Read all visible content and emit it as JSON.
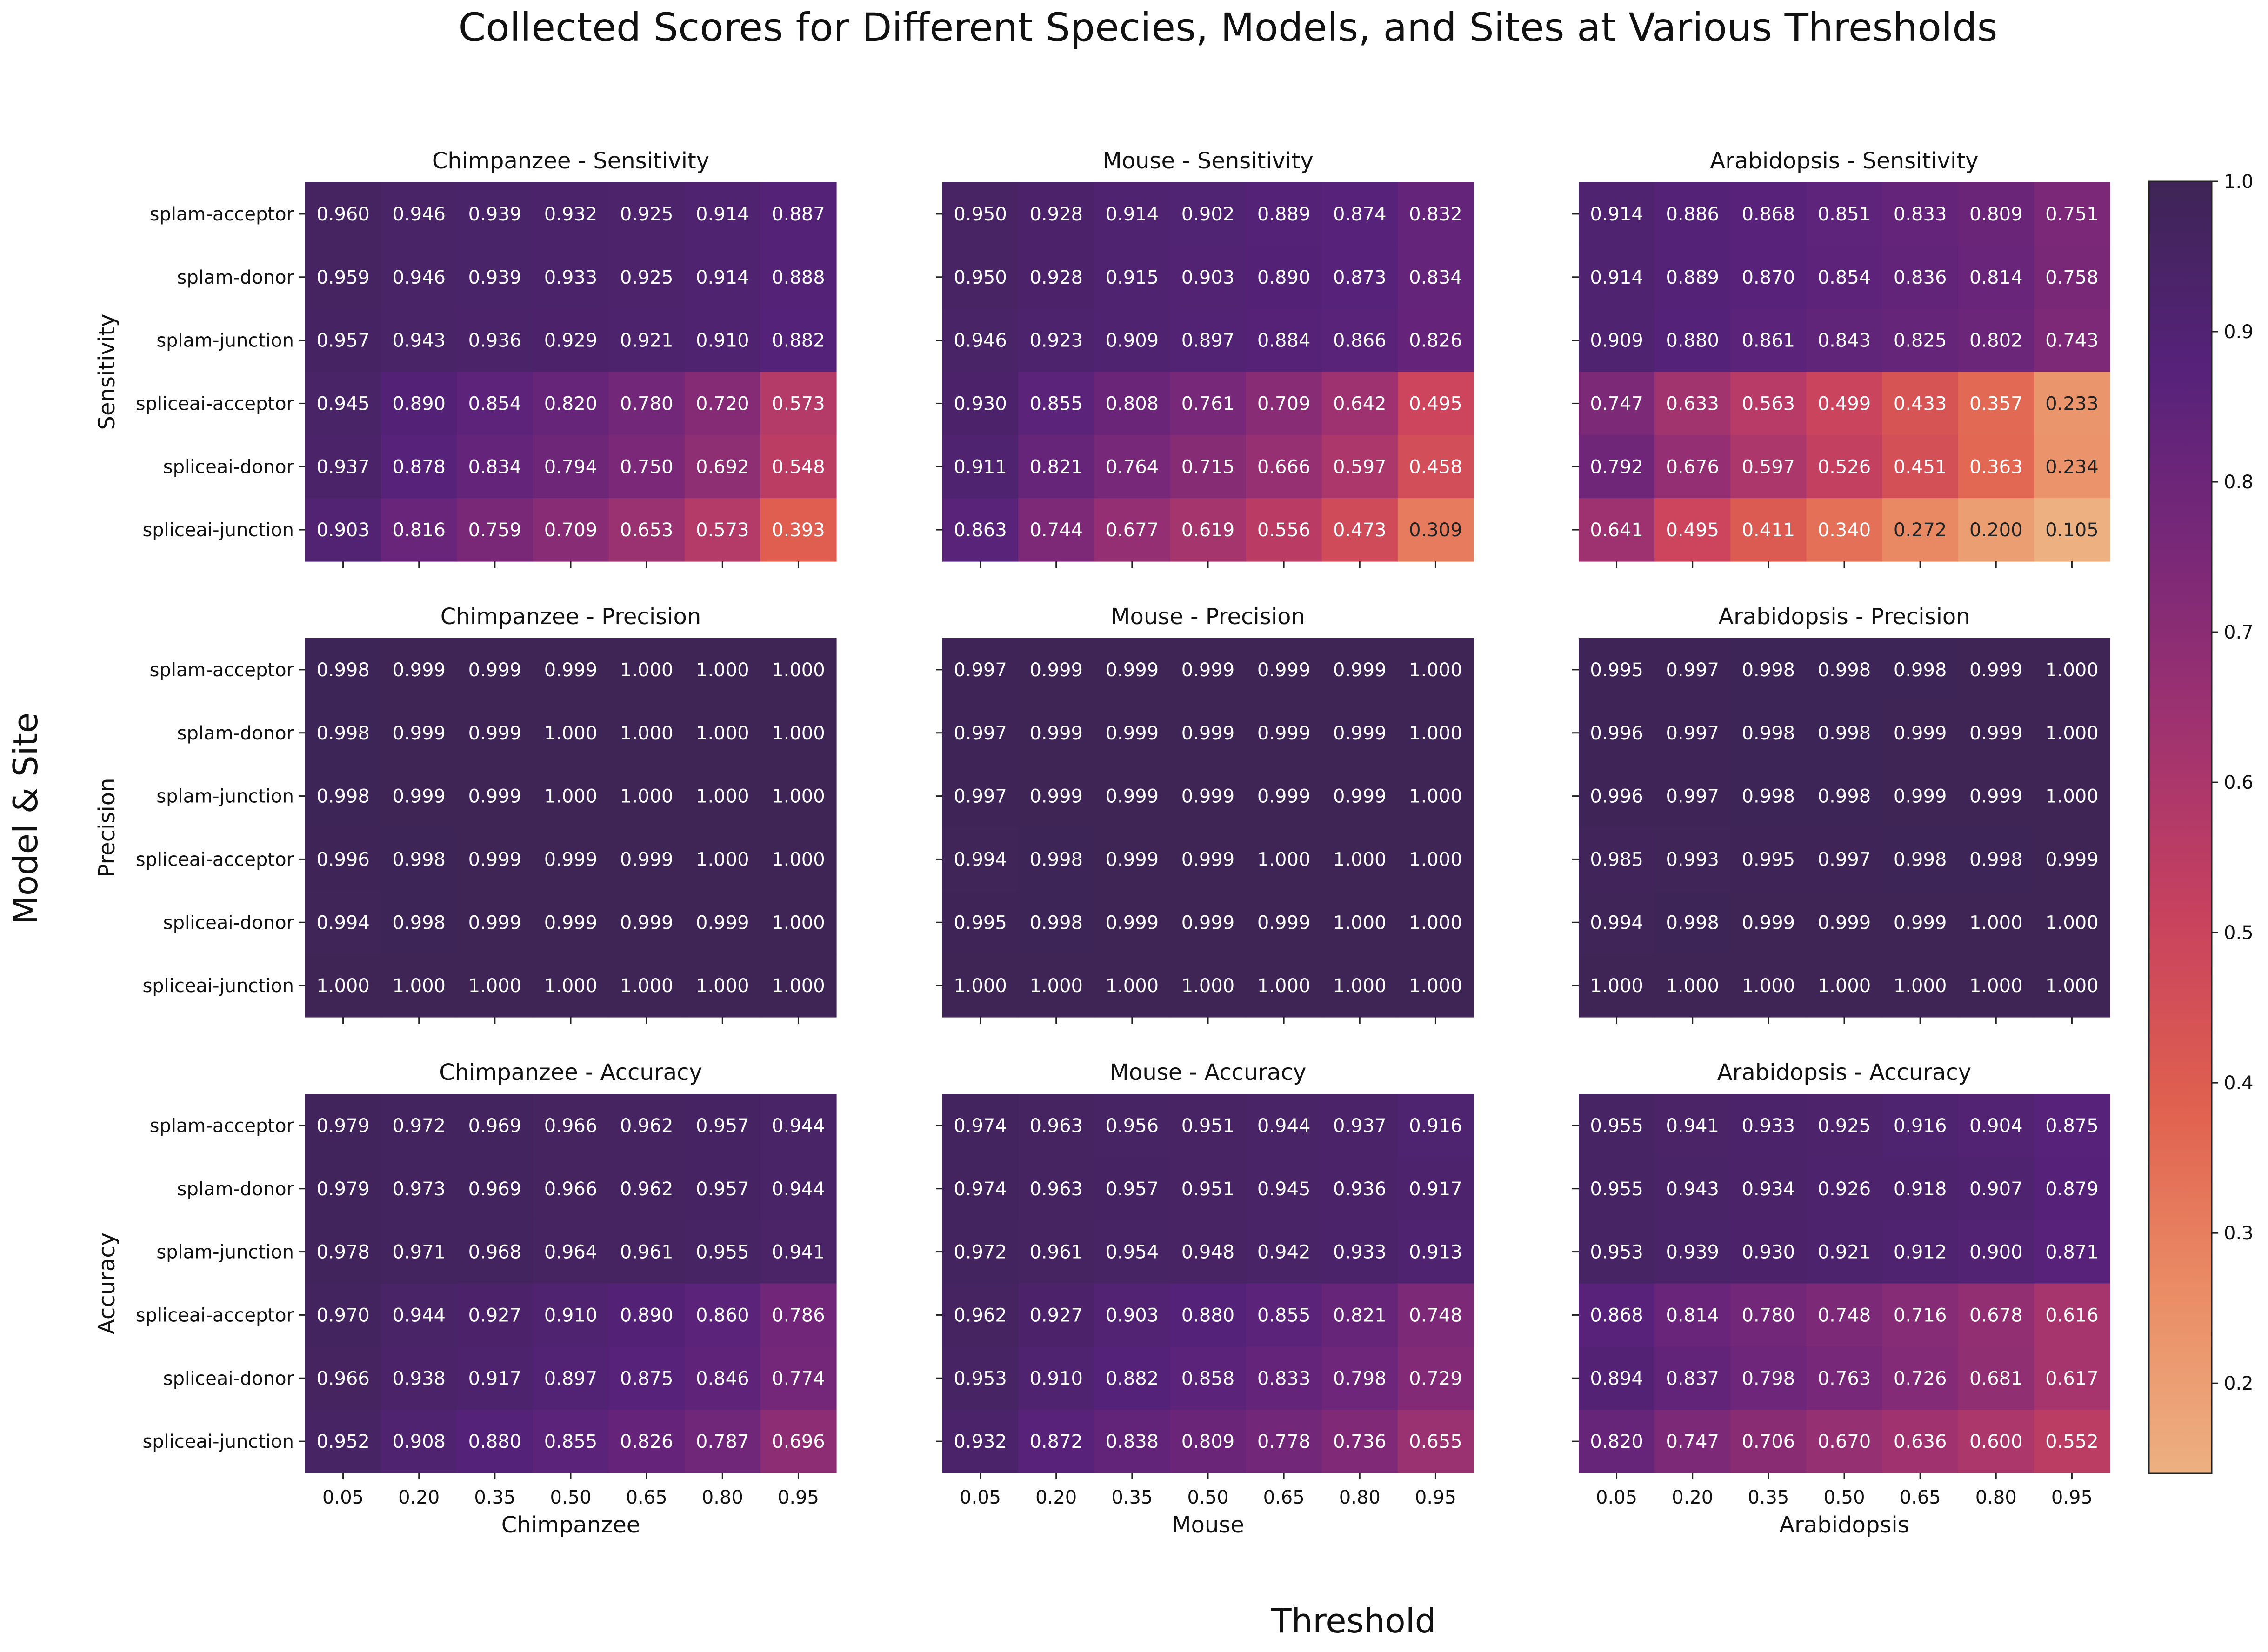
{
  "title": "Collected Scores for Different Species, Models, and Sites at Various Thresholds",
  "supxlabel": "Threshold",
  "supylabel": "Model & Site",
  "colorbar": {
    "min": 0.14,
    "max": 1.0,
    "ticks": [
      "0.2",
      "0.3",
      "0.4",
      "0.5",
      "0.6",
      "0.7",
      "0.8",
      "0.9",
      "1.0"
    ]
  },
  "chart_data": {
    "type": "heatmap",
    "colormap": "flare",
    "color_stops": [
      "#edb081",
      "#ea8c65",
      "#e0604f",
      "#c9425e",
      "#a1336f",
      "#7a2878",
      "#56227a",
      "#3e2556"
    ],
    "thresholds": [
      "0.05",
      "0.20",
      "0.35",
      "0.50",
      "0.65",
      "0.80",
      "0.95"
    ],
    "rows": [
      "splam-acceptor",
      "splam-donor",
      "splam-junction",
      "spliceai-acceptor",
      "spliceai-donor",
      "spliceai-junction"
    ],
    "species": [
      "Chimpanzee",
      "Mouse",
      "Arabidopsis"
    ],
    "metrics": [
      "Sensitivity",
      "Precision",
      "Accuracy"
    ],
    "panels": [
      {
        "title": "Chimpanzee - Sensitivity",
        "values": [
          [
            0.96,
            0.946,
            0.939,
            0.932,
            0.925,
            0.914,
            0.887
          ],
          [
            0.959,
            0.946,
            0.939,
            0.933,
            0.925,
            0.914,
            0.888
          ],
          [
            0.957,
            0.943,
            0.936,
            0.929,
            0.921,
            0.91,
            0.882
          ],
          [
            0.945,
            0.89,
            0.854,
            0.82,
            0.78,
            0.72,
            0.573
          ],
          [
            0.937,
            0.878,
            0.834,
            0.794,
            0.75,
            0.692,
            0.548
          ],
          [
            0.903,
            0.816,
            0.759,
            0.709,
            0.653,
            0.573,
            0.393
          ]
        ]
      },
      {
        "title": "Mouse - Sensitivity",
        "values": [
          [
            0.95,
            0.928,
            0.914,
            0.902,
            0.889,
            0.874,
            0.832
          ],
          [
            0.95,
            0.928,
            0.915,
            0.903,
            0.89,
            0.873,
            0.834
          ],
          [
            0.946,
            0.923,
            0.909,
            0.897,
            0.884,
            0.866,
            0.826
          ],
          [
            0.93,
            0.855,
            0.808,
            0.761,
            0.709,
            0.642,
            0.495
          ],
          [
            0.911,
            0.821,
            0.764,
            0.715,
            0.666,
            0.597,
            0.458
          ],
          [
            0.863,
            0.744,
            0.677,
            0.619,
            0.556,
            0.473,
            0.309
          ]
        ]
      },
      {
        "title": "Arabidopsis - Sensitivity",
        "values": [
          [
            0.914,
            0.886,
            0.868,
            0.851,
            0.833,
            0.809,
            0.751
          ],
          [
            0.914,
            0.889,
            0.87,
            0.854,
            0.836,
            0.814,
            0.758
          ],
          [
            0.909,
            0.88,
            0.861,
            0.843,
            0.825,
            0.802,
            0.743
          ],
          [
            0.747,
            0.633,
            0.563,
            0.499,
            0.433,
            0.357,
            0.233
          ],
          [
            0.792,
            0.676,
            0.597,
            0.526,
            0.451,
            0.363,
            0.234
          ],
          [
            0.641,
            0.495,
            0.411,
            0.34,
            0.272,
            0.2,
            0.105
          ]
        ]
      },
      {
        "title": "Chimpanzee - Precision",
        "values": [
          [
            0.998,
            0.999,
            0.999,
            0.999,
            1.0,
            1.0,
            1.0
          ],
          [
            0.998,
            0.999,
            0.999,
            1.0,
            1.0,
            1.0,
            1.0
          ],
          [
            0.998,
            0.999,
            0.999,
            1.0,
            1.0,
            1.0,
            1.0
          ],
          [
            0.996,
            0.998,
            0.999,
            0.999,
            0.999,
            1.0,
            1.0
          ],
          [
            0.994,
            0.998,
            0.999,
            0.999,
            0.999,
            0.999,
            1.0
          ],
          [
            1.0,
            1.0,
            1.0,
            1.0,
            1.0,
            1.0,
            1.0
          ]
        ]
      },
      {
        "title": "Mouse - Precision",
        "values": [
          [
            0.997,
            0.999,
            0.999,
            0.999,
            0.999,
            0.999,
            1.0
          ],
          [
            0.997,
            0.999,
            0.999,
            0.999,
            0.999,
            0.999,
            1.0
          ],
          [
            0.997,
            0.999,
            0.999,
            0.999,
            0.999,
            0.999,
            1.0
          ],
          [
            0.994,
            0.998,
            0.999,
            0.999,
            1.0,
            1.0,
            1.0
          ],
          [
            0.995,
            0.998,
            0.999,
            0.999,
            0.999,
            1.0,
            1.0
          ],
          [
            1.0,
            1.0,
            1.0,
            1.0,
            1.0,
            1.0,
            1.0
          ]
        ]
      },
      {
        "title": "Arabidopsis - Precision",
        "values": [
          [
            0.995,
            0.997,
            0.998,
            0.998,
            0.998,
            0.999,
            1.0
          ],
          [
            0.996,
            0.997,
            0.998,
            0.998,
            0.999,
            0.999,
            1.0
          ],
          [
            0.996,
            0.997,
            0.998,
            0.998,
            0.999,
            0.999,
            1.0
          ],
          [
            0.985,
            0.993,
            0.995,
            0.997,
            0.998,
            0.998,
            0.999
          ],
          [
            0.994,
            0.998,
            0.999,
            0.999,
            0.999,
            1.0,
            1.0
          ],
          [
            1.0,
            1.0,
            1.0,
            1.0,
            1.0,
            1.0,
            1.0
          ]
        ]
      },
      {
        "title": "Chimpanzee - Accuracy",
        "values": [
          [
            0.979,
            0.972,
            0.969,
            0.966,
            0.962,
            0.957,
            0.944
          ],
          [
            0.979,
            0.973,
            0.969,
            0.966,
            0.962,
            0.957,
            0.944
          ],
          [
            0.978,
            0.971,
            0.968,
            0.964,
            0.961,
            0.955,
            0.941
          ],
          [
            0.97,
            0.944,
            0.927,
            0.91,
            0.89,
            0.86,
            0.786
          ],
          [
            0.966,
            0.938,
            0.917,
            0.897,
            0.875,
            0.846,
            0.774
          ],
          [
            0.952,
            0.908,
            0.88,
            0.855,
            0.826,
            0.787,
            0.696
          ]
        ]
      },
      {
        "title": "Mouse - Accuracy",
        "values": [
          [
            0.974,
            0.963,
            0.956,
            0.951,
            0.944,
            0.937,
            0.916
          ],
          [
            0.974,
            0.963,
            0.957,
            0.951,
            0.945,
            0.936,
            0.917
          ],
          [
            0.972,
            0.961,
            0.954,
            0.948,
            0.942,
            0.933,
            0.913
          ],
          [
            0.962,
            0.927,
            0.903,
            0.88,
            0.855,
            0.821,
            0.748
          ],
          [
            0.953,
            0.91,
            0.882,
            0.858,
            0.833,
            0.798,
            0.729
          ],
          [
            0.932,
            0.872,
            0.838,
            0.809,
            0.778,
            0.736,
            0.655
          ]
        ]
      },
      {
        "title": "Arabidopsis - Accuracy",
        "values": [
          [
            0.955,
            0.941,
            0.933,
            0.925,
            0.916,
            0.904,
            0.875
          ],
          [
            0.955,
            0.943,
            0.934,
            0.926,
            0.918,
            0.907,
            0.879
          ],
          [
            0.953,
            0.939,
            0.93,
            0.921,
            0.912,
            0.9,
            0.871
          ],
          [
            0.868,
            0.814,
            0.78,
            0.748,
            0.716,
            0.678,
            0.616
          ],
          [
            0.894,
            0.837,
            0.798,
            0.763,
            0.726,
            0.681,
            0.617
          ],
          [
            0.82,
            0.747,
            0.706,
            0.67,
            0.636,
            0.6,
            0.552
          ]
        ]
      }
    ]
  }
}
